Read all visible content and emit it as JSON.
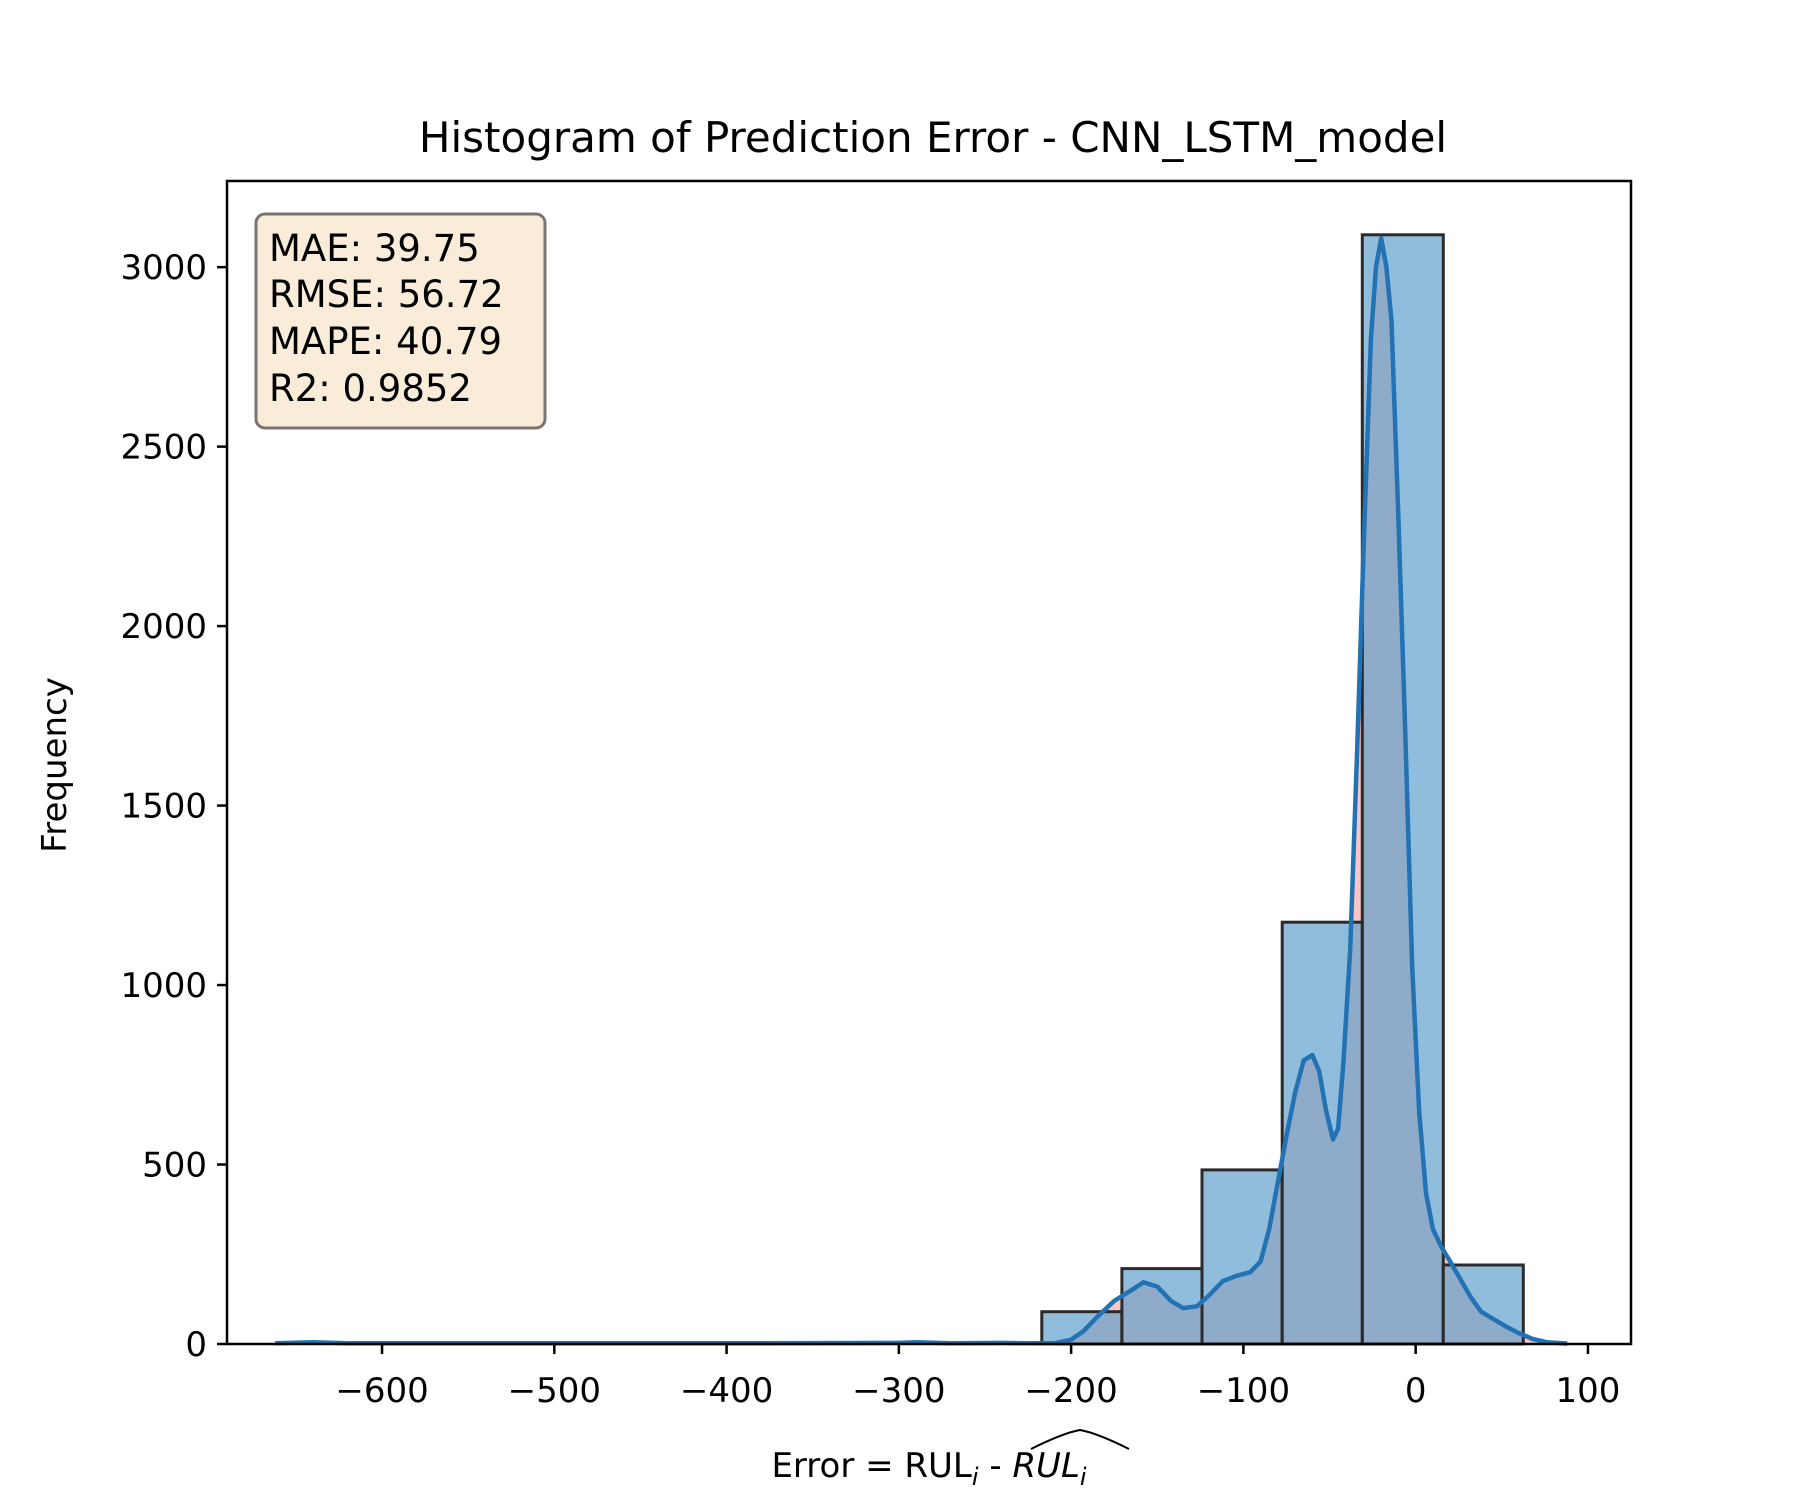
{
  "chart_data": {
    "type": "bar",
    "title": "Histogram of Prediction Error - CNN_LSTM_model",
    "xlabel": {
      "prefix": "Error = RUL",
      "sub1": "i",
      "sep": " - ",
      "hat": "RUL",
      "sub2": "i"
    },
    "ylabel": "Frequency",
    "xlim": [
      -690,
      125
    ],
    "ylim": [
      0,
      3240
    ],
    "x_ticks": [
      -600,
      -500,
      -400,
      -300,
      -200,
      -100,
      0,
      100
    ],
    "x_tick_labels": [
      "−600",
      "−500",
      "−400",
      "−300",
      "−200",
      "−100",
      "0",
      "100"
    ],
    "y_ticks": [
      0,
      500,
      1000,
      1500,
      2000,
      2500,
      3000
    ],
    "y_tick_labels": [
      "0",
      "500",
      "1000",
      "1500",
      "2000",
      "2500",
      "3000"
    ],
    "bins": [
      {
        "x0": -217,
        "x1": -170.5,
        "count": 90
      },
      {
        "x0": -170.5,
        "x1": -124,
        "count": 210
      },
      {
        "x0": -124,
        "x1": -77.5,
        "count": 485
      },
      {
        "x0": -77.5,
        "x1": -31,
        "count": 1175
      },
      {
        "x0": -31,
        "x1": 16,
        "count": 3090
      },
      {
        "x0": 16,
        "x1": 62.5,
        "count": 220
      }
    ],
    "kde": [
      [
        -662,
        2
      ],
      [
        -640,
        5
      ],
      [
        -620,
        2
      ],
      [
        -500,
        2
      ],
      [
        -400,
        2
      ],
      [
        -300,
        3
      ],
      [
        -290,
        5
      ],
      [
        -270,
        2
      ],
      [
        -240,
        3
      ],
      [
        -222,
        2
      ],
      [
        -210,
        2
      ],
      [
        -200,
        12
      ],
      [
        -193,
        35
      ],
      [
        -185,
        75
      ],
      [
        -175,
        120
      ],
      [
        -165,
        150
      ],
      [
        -158,
        172
      ],
      [
        -150,
        160
      ],
      [
        -142,
        120
      ],
      [
        -135,
        100
      ],
      [
        -127,
        105
      ],
      [
        -120,
        135
      ],
      [
        -112,
        175
      ],
      [
        -104,
        190
      ],
      [
        -96,
        200
      ],
      [
        -90,
        230
      ],
      [
        -85,
        320
      ],
      [
        -80,
        450
      ],
      [
        -75,
        580
      ],
      [
        -70,
        700
      ],
      [
        -65,
        790
      ],
      [
        -60,
        805
      ],
      [
        -56,
        760
      ],
      [
        -52,
        650
      ],
      [
        -48,
        570
      ],
      [
        -45,
        600
      ],
      [
        -42,
        780
      ],
      [
        -38,
        1100
      ],
      [
        -34,
        1650
      ],
      [
        -30,
        2250
      ],
      [
        -26,
        2800
      ],
      [
        -23,
        3000
      ],
      [
        -20,
        3080
      ],
      [
        -17,
        3000
      ],
      [
        -14,
        2850
      ],
      [
        -10,
        2300
      ],
      [
        -6,
        1700
      ],
      [
        -2,
        1050
      ],
      [
        2,
        650
      ],
      [
        6,
        420
      ],
      [
        10,
        320
      ],
      [
        15,
        270
      ],
      [
        20,
        230
      ],
      [
        26,
        180
      ],
      [
        32,
        130
      ],
      [
        38,
        90
      ],
      [
        45,
        70
      ],
      [
        52,
        50
      ],
      [
        60,
        30
      ],
      [
        68,
        14
      ],
      [
        76,
        5
      ],
      [
        82,
        3
      ],
      [
        88,
        1
      ]
    ],
    "stats": [
      "MAE: 39.75",
      "RMSE: 56.72",
      "MAPE: 40.79",
      "R2: 0.9852"
    ],
    "colors": {
      "bar_fill": "#5d9ecb",
      "bar_edge": "#2b2b2b",
      "kde_line": "#2272b4",
      "kde_fill": "#f08080",
      "stats_box_fill": "#f9edd9",
      "stats_box_edge": "#7a7571"
    },
    "grid": false,
    "legend": "none"
  }
}
